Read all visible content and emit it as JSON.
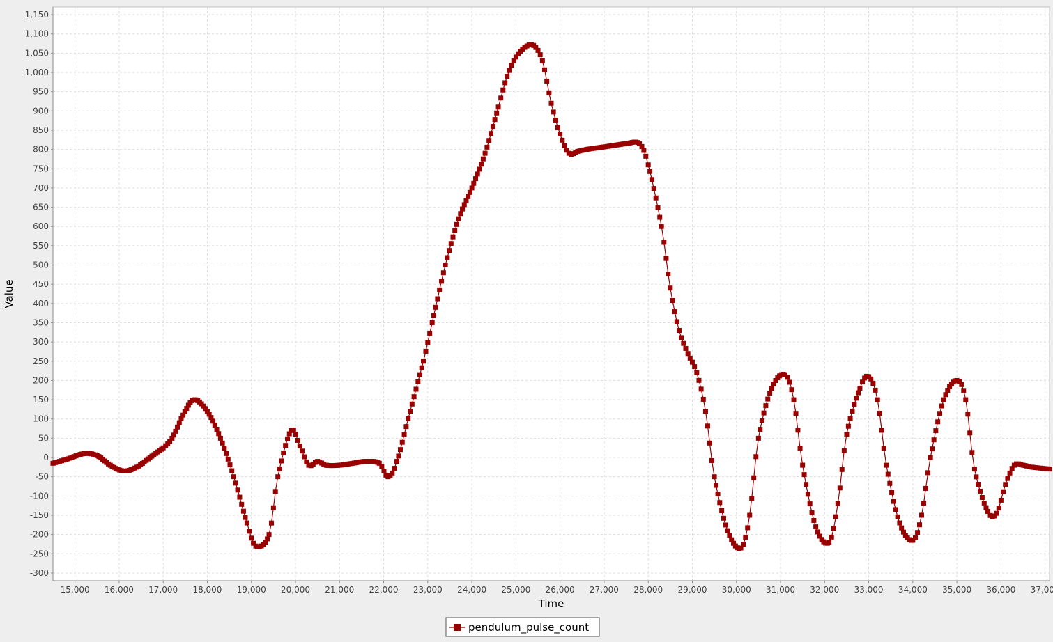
{
  "chart_data": {
    "type": "line",
    "xlabel": "Time",
    "ylabel": "Value",
    "xlim": [
      14500,
      37100
    ],
    "ylim": [
      -320,
      1170
    ],
    "x_ticks": [
      15000,
      16000,
      17000,
      18000,
      19000,
      20000,
      21000,
      22000,
      23000,
      24000,
      25000,
      26000,
      27000,
      28000,
      29000,
      30000,
      31000,
      32000,
      33000,
      34000,
      35000,
      36000,
      37000
    ],
    "y_ticks": [
      -300,
      -250,
      -200,
      -150,
      -100,
      -50,
      0,
      50,
      100,
      150,
      200,
      250,
      300,
      350,
      400,
      450,
      500,
      550,
      600,
      650,
      700,
      750,
      800,
      850,
      900,
      950,
      1000,
      1050,
      1100,
      1150
    ],
    "grid": true,
    "legend_position": "bottom",
    "colors": {
      "series": "#990000",
      "plot_bg": "#ffffff",
      "grid": "#dddddd",
      "page_bg": "#eeeeee"
    },
    "marker": "square",
    "series": [
      {
        "name": "pendulum_pulse_count",
        "x": [
          14500,
          14800,
          15200,
          15500,
          15800,
          16100,
          16400,
          16700,
          17000,
          17200,
          17450,
          17700,
          18000,
          18300,
          18600,
          18900,
          19100,
          19400,
          19600,
          19900,
          20100,
          20300,
          20500,
          20700,
          21000,
          21300,
          21600,
          21900,
          22100,
          22300,
          22600,
          22900,
          23100,
          23400,
          23700,
          24000,
          24300,
          24600,
          24800,
          25000,
          25200,
          25400,
          25600,
          25800,
          26000,
          26200,
          26400,
          26600,
          26900,
          27200,
          27500,
          27800,
          28000,
          28300,
          28500,
          28700,
          28900,
          29100,
          29300,
          29500,
          29800,
          30100,
          30300,
          30500,
          30800,
          31100,
          31300,
          31500,
          31800,
          32100,
          32300,
          32500,
          32800,
          33000,
          33200,
          33400,
          33700,
          34000,
          34200,
          34400,
          34700,
          35000,
          35200,
          35400,
          35700,
          35900,
          36100,
          36300,
          36500,
          36700,
          37100
        ],
        "y": [
          -15,
          -5,
          10,
          5,
          -20,
          -35,
          -25,
          0,
          25,
          50,
          110,
          150,
          120,
          50,
          -50,
          -170,
          -230,
          -200,
          -50,
          70,
          30,
          -20,
          -10,
          -20,
          -20,
          -15,
          -10,
          -15,
          -50,
          -10,
          120,
          250,
          350,
          500,
          620,
          700,
          790,
          910,
          990,
          1040,
          1065,
          1070,
          1030,
          920,
          840,
          790,
          795,
          800,
          805,
          810,
          815,
          815,
          760,
          600,
          440,
          330,
          270,
          220,
          120,
          -50,
          -190,
          -235,
          -150,
          50,
          180,
          215,
          150,
          -20,
          -180,
          -220,
          -120,
          60,
          180,
          210,
          150,
          -20,
          -170,
          -215,
          -150,
          0,
          150,
          200,
          150,
          -30,
          -140,
          -145,
          -70,
          -20,
          -20,
          -25,
          -30
        ]
      }
    ]
  }
}
